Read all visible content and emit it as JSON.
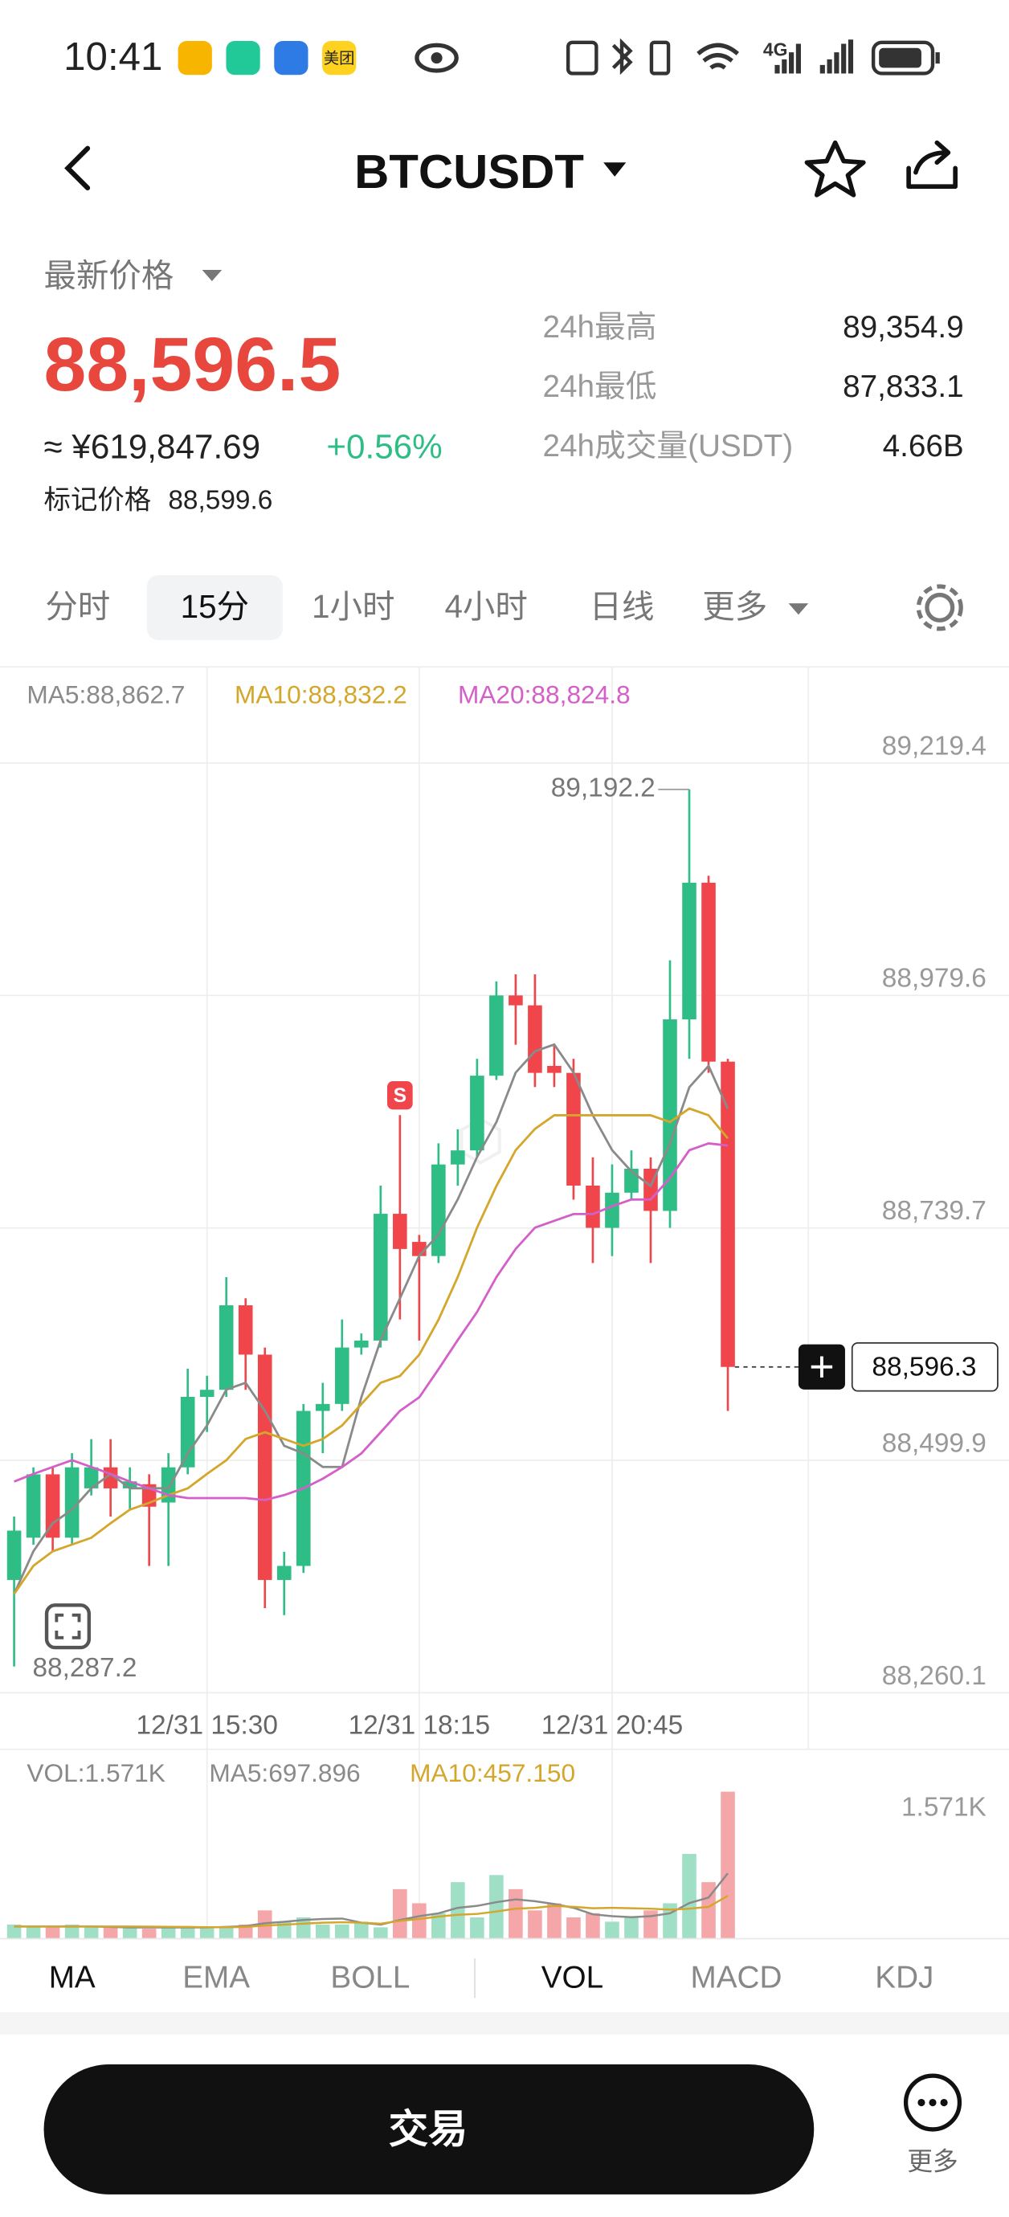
{
  "status_bar": {
    "time": "10:41",
    "app_icon_label": "美团",
    "network": "4G"
  },
  "header": {
    "symbol": "BTCUSDT"
  },
  "price_panel": {
    "label": "最新价格",
    "last_price": "88,596.5",
    "cny_price": "≈ ¥619,847.69",
    "change": "+0.56%",
    "mark_price_label": "标记价格",
    "mark_price": "88,599.6",
    "stats": [
      {
        "label": "24h最高",
        "value": "89,354.9"
      },
      {
        "label": "24h最低",
        "value": "87,833.1"
      },
      {
        "label": "24h成交量(USDT)",
        "value": "4.66B"
      }
    ]
  },
  "interval_tabs": {
    "items": [
      "分时",
      "15分",
      "1小时",
      "4小时",
      "日线",
      "更多"
    ],
    "selected": 1
  },
  "chart_data": [
    {
      "type": "candlestick",
      "categories": [
        null,
        null,
        null,
        null,
        null,
        null,
        null,
        null,
        null,
        null,
        "12/31 15:30",
        null,
        null,
        null,
        null,
        null,
        null,
        null,
        null,
        null,
        null,
        "12/31 18:15",
        null,
        null,
        null,
        null,
        null,
        null,
        null,
        null,
        null,
        "12/31 20:45",
        null,
        null,
        null,
        null,
        null,
        null
      ],
      "open": [
        88376.5,
        88420.1,
        88485.5,
        88420.1,
        88471.0,
        88492.7,
        88471.0,
        88475.3,
        88456.4,
        88492.7,
        88565.4,
        88572.7,
        88659.9,
        88609.0,
        88376.5,
        88391.0,
        88550.9,
        88558.1,
        88616.3,
        88623.5,
        88754.3,
        88725.3,
        88710.7,
        88805.2,
        88819.7,
        88896.8,
        88979.6,
        88969.4,
        88906.9,
        88899.7,
        88783.4,
        88739.8,
        88776.1,
        88800.8,
        88757.3,
        88954.9,
        89095.9,
        88911.3
      ],
      "high": [
        88441.9,
        88492.7,
        88492.7,
        88507.3,
        88521.8,
        88521.8,
        88492.7,
        88485.5,
        88507.3,
        88594.5,
        88587.2,
        88688.9,
        88667.1,
        88616.3,
        88405.6,
        88558.1,
        88579.9,
        88645.3,
        88630.8,
        88783.4,
        88856.1,
        88732.5,
        88827.0,
        88841.5,
        88914.2,
        88994.1,
        89001.4,
        89001.4,
        88928.7,
        88914.2,
        88812.5,
        88805.2,
        88819.7,
        88812.5,
        89015.9,
        89192.2,
        89103.1,
        88914.2
      ],
      "low": [
        88287.2,
        88412.8,
        88405.6,
        88412.8,
        88463.7,
        88441.9,
        88449.2,
        88391.0,
        88391.0,
        88485.5,
        88529.1,
        88565.4,
        88572.7,
        88347.4,
        88340.2,
        88383.8,
        88507.3,
        88550.9,
        88609.0,
        88616.3,
        88645.3,
        88623.5,
        88703.5,
        88783.4,
        88812.5,
        88892.4,
        88928.7,
        88885.1,
        88885.1,
        88768.9,
        88703.5,
        88710.7,
        88768.9,
        88703.5,
        88739.8,
        88914.2,
        88899.7,
        88550.9
      ],
      "close": [
        88427.4,
        88485.5,
        88420.1,
        88492.7,
        88492.7,
        88471.0,
        88478.2,
        88452.1,
        88492.7,
        88565.4,
        88572.7,
        88659.9,
        88609.0,
        88376.5,
        88391.0,
        88550.9,
        88558.1,
        88616.3,
        88623.5,
        88754.3,
        88718.0,
        88710.7,
        88805.2,
        88819.7,
        88896.8,
        88979.6,
        88969.4,
        88899.7,
        88899.7,
        88783.4,
        88739.8,
        88776.1,
        88800.8,
        88757.3,
        88954.9,
        89095.9,
        88911.3,
        88596.3
      ],
      "up_color": "#2ebd85",
      "down_color": "#f0464b",
      "ylim": [
        88260.1,
        89219.4
      ],
      "yticks": [
        {
          "value": 89219.4,
          "label": "89,219.4"
        },
        {
          "value": 88979.6,
          "label": "88,979.6"
        },
        {
          "value": 88739.7,
          "label": "88,739.7"
        },
        {
          "value": 88499.9,
          "label": "88,499.9"
        },
        {
          "value": 88260.1,
          "label": "88,260.1"
        }
      ],
      "grid": true,
      "series": [
        {
          "label": "MA5:88,862.7",
          "color": "#8a8a8a",
          "values": [
            88362,
            88406,
            88435,
            88449,
            88471,
            88486,
            88471,
            88471,
            88471,
            88507,
            88536,
            88573,
            88580,
            88551,
            88515,
            88507,
            88493,
            88493,
            88565,
            88624,
            88667,
            88711,
            88733,
            88769,
            88813,
            88849,
            88900,
            88922,
            88929,
            88900,
            88856,
            88820,
            88798,
            88783,
            88827,
            88885,
            88907,
            88862.7
          ]
        },
        {
          "label": "MA10:88,832.2",
          "color": "#d4a72c",
          "values": [
            88362,
            88391,
            88406,
            88413,
            88420,
            88435,
            88449,
            88456,
            88464,
            88471,
            88486,
            88500,
            88522,
            88529,
            88522,
            88515,
            88522,
            88536,
            88558,
            88580,
            88587,
            88609,
            88645,
            88689,
            88740,
            88783,
            88820,
            88842,
            88856,
            88856,
            88856,
            88856,
            88856,
            88856,
            88849,
            88863,
            88856,
            88832.2
          ]
        },
        {
          "label": "MA20:88,824.8",
          "color": "#d45fc8",
          "values": [
            88478,
            88486,
            88493,
            88500,
            88493,
            88486,
            88478,
            88471,
            88464,
            88461,
            88461,
            88461,
            88461,
            88459,
            88464,
            88471,
            88481,
            88493,
            88507,
            88529,
            88551,
            88565,
            88594,
            88624,
            88653,
            88689,
            88718,
            88740,
            88747,
            88754,
            88754,
            88762,
            88769,
            88769,
            88791,
            88820,
            88827,
            88824.8
          ]
        }
      ],
      "max_label": "89,192.2",
      "min_label": "88,287.2",
      "last_price_label": "88,596.3",
      "trade_marker": "S"
    },
    {
      "type": "bar",
      "values": [
        151,
        121,
        121,
        151,
        121,
        121,
        121,
        106,
        121,
        121,
        121,
        121,
        151,
        302,
        181,
        227,
        151,
        151,
        181,
        121,
        529,
        378,
        272,
        604,
        227,
        680,
        529,
        302,
        378,
        227,
        272,
        181,
        227,
        302,
        378,
        906,
        604,
        1571
      ],
      "up_color": "#9fdfc6",
      "down_color": "#f5a6a9",
      "ylim": [
        0,
        1571
      ],
      "yticks": [
        {
          "value": 1571,
          "label": "1.571K"
        }
      ],
      "legend": "VOL:1.571K",
      "series": [
        {
          "label": "MA5:697.896",
          "color": "#8a8a8a",
          "values": [
            130,
            130,
            130,
            130,
            130,
            125,
            120,
            120,
            120,
            120,
            120,
            125,
            135,
            165,
            180,
            200,
            210,
            215,
            170,
            150,
            200,
            240,
            270,
            330,
            350,
            390,
            420,
            400,
            370,
            330,
            260,
            240,
            230,
            240,
            270,
            380,
            440,
            697.896
          ]
        },
        {
          "label": "MA10:457.150",
          "color": "#d4a72c",
          "values": [
            130,
            130,
            130,
            130,
            130,
            130,
            130,
            128,
            127,
            125,
            123,
            122,
            125,
            140,
            150,
            160,
            170,
            175,
            170,
            160,
            190,
            210,
            235,
            255,
            265,
            290,
            320,
            330,
            350,
            340,
            325,
            330,
            325,
            320,
            310,
            320,
            340,
            457.15
          ]
        }
      ]
    }
  ],
  "indicator_tabs": {
    "items": [
      "MA",
      "EMA",
      "BOLL",
      "VOL",
      "MACD",
      "KDJ"
    ],
    "selected": [
      0,
      3
    ]
  },
  "bottom_bar": {
    "trade_button": "交易",
    "more": "更多"
  }
}
